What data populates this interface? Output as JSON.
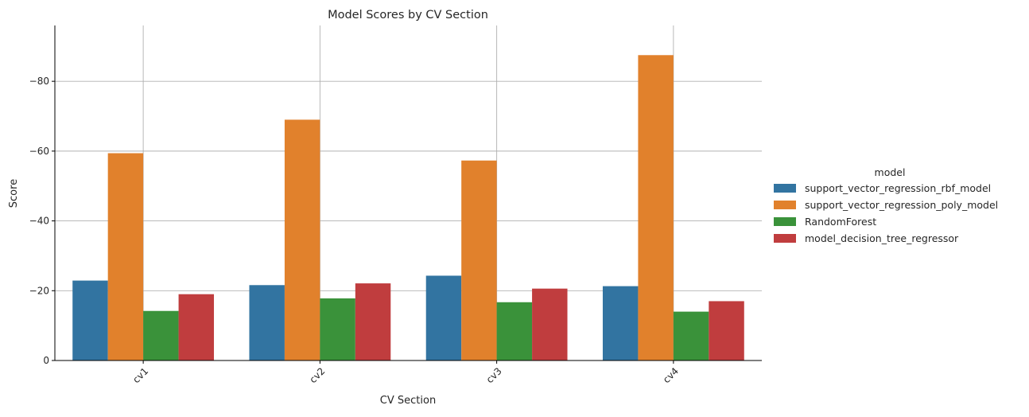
{
  "chart_data": {
    "type": "bar",
    "title": "Model Scores by CV Section",
    "xlabel": "CV Section",
    "ylabel": "Score",
    "categories": [
      "cv1",
      "cv2",
      "cv3",
      "cv4"
    ],
    "y_inverted": true,
    "ylim": [
      0,
      -96
    ],
    "yticks": [
      0,
      -20,
      -40,
      -60,
      -80
    ],
    "ytick_labels": [
      "0",
      "−20",
      "−40",
      "−60",
      "−80"
    ],
    "grid": true,
    "legend_title": "model",
    "legend_position": "right",
    "series": [
      {
        "name": "support_vector_regression_rbf_model",
        "color": "#3274a1",
        "values": [
          -22.9,
          -21.6,
          -24.3,
          -21.3
        ]
      },
      {
        "name": "support_vector_regression_poly_model",
        "color": "#e1812c",
        "values": [
          -59.4,
          -69.0,
          -57.3,
          -87.5
        ]
      },
      {
        "name": "RandomForest",
        "color": "#3a923a",
        "values": [
          -14.2,
          -17.8,
          -16.7,
          -14.0
        ]
      },
      {
        "name": "model_decision_tree_regressor",
        "color": "#c03d3e",
        "values": [
          -19.0,
          -22.1,
          -20.6,
          -17.0
        ]
      }
    ]
  }
}
